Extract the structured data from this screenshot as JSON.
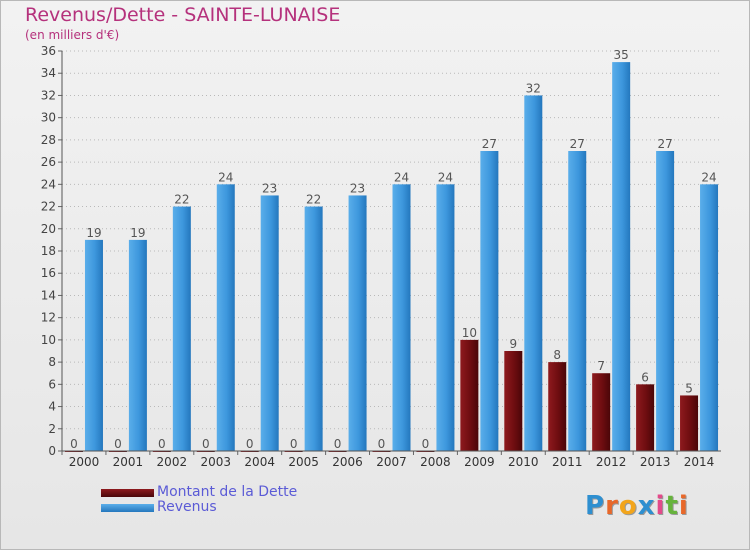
{
  "title": "Revenus/Dette - SAINTE-LUNAISE",
  "subtitle": "(en milliers d'€)",
  "chart_data": {
    "type": "bar",
    "categories": [
      "2000",
      "2001",
      "2002",
      "2003",
      "2004",
      "2005",
      "2006",
      "2007",
      "2008",
      "2009",
      "2010",
      "2011",
      "2012",
      "2013",
      "2014"
    ],
    "series": [
      {
        "name": "Montant de la Dette",
        "values": [
          0,
          0,
          0,
          0,
          0,
          0,
          0,
          0,
          0,
          10,
          9,
          8,
          7,
          6,
          5
        ],
        "color": "#7a0f12"
      },
      {
        "name": "Revenus",
        "values": [
          19,
          19,
          22,
          24,
          23,
          22,
          23,
          24,
          24,
          27,
          32,
          27,
          35,
          27,
          24
        ],
        "color": "#3d97dd"
      }
    ],
    "ylim": [
      0,
      36
    ],
    "yticks": [
      0,
      2,
      4,
      6,
      8,
      10,
      12,
      14,
      16,
      18,
      20,
      22,
      24,
      26,
      28,
      30,
      32,
      34,
      36
    ],
    "grid": "horizontal-dotted",
    "legend_position": "bottom-left",
    "data_labels": true
  },
  "legend": [
    {
      "label": "Montant de la Dette",
      "color": "#6a0a0e"
    },
    {
      "label": "Revenus",
      "color": "#3d97dd"
    }
  ],
  "logo": {
    "letters": [
      "P",
      "r",
      "o",
      "x",
      "i",
      "t",
      "i"
    ],
    "colors": [
      "#2e8fd0",
      "#e8682a",
      "#f2a51c",
      "#2e8fd0",
      "#e34a8a",
      "#66b33c",
      "#e8682a"
    ]
  }
}
